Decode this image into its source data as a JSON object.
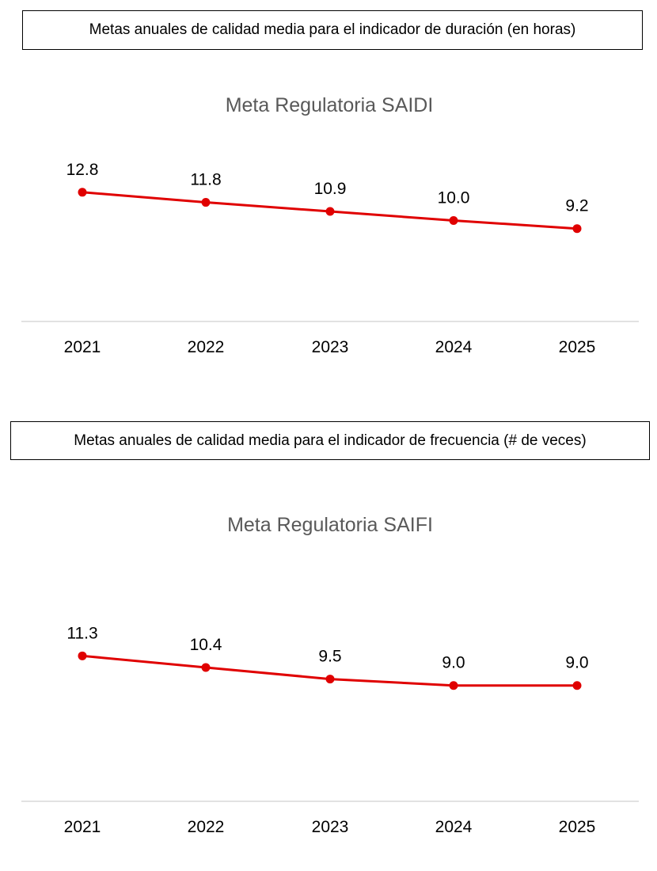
{
  "headers": {
    "saidi": "Metas anuales de calidad media para el indicador de duración (en horas)",
    "saifi": "Metas anuales de calidad media para el indicador de frecuencia (# de veces)"
  },
  "colors": {
    "line": "#e00000",
    "axis": "#d9d9d9",
    "title": "#595959"
  },
  "chart_data": [
    {
      "type": "line",
      "title": "Meta Regulatoria SAIDI",
      "categories": [
        "2021",
        "2022",
        "2023",
        "2024",
        "2025"
      ],
      "values": [
        12.8,
        11.8,
        10.9,
        10.0,
        9.2
      ],
      "labels": [
        "12.8",
        "11.8",
        "10.9",
        "10.0",
        "9.2"
      ],
      "ylim": [
        0,
        24
      ],
      "grid": false,
      "legend": false
    },
    {
      "type": "line",
      "title": "Meta Regulatoria SAIFI",
      "categories": [
        "2021",
        "2022",
        "2023",
        "2024",
        "2025"
      ],
      "values": [
        11.3,
        10.4,
        9.5,
        9.0,
        9.0
      ],
      "labels": [
        "11.3",
        "10.4",
        "9.5",
        "9.0",
        "9.0"
      ],
      "ylim": [
        0,
        23.5
      ],
      "grid": false,
      "legend": false
    }
  ]
}
